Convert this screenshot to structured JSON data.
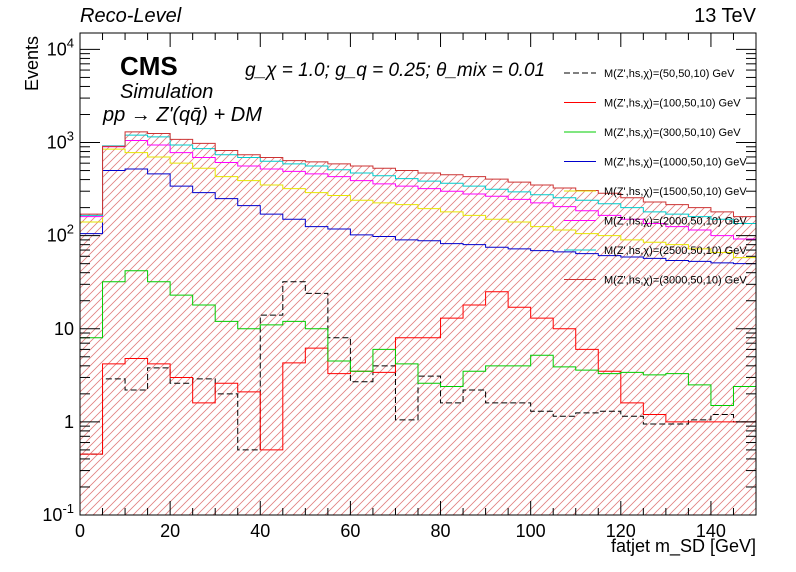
{
  "header": {
    "left": "Reco-Level",
    "right": "13 TeV"
  },
  "labels": {
    "cms": "CMS",
    "simulation": "Simulation",
    "process": "pp → Z'(qq̄) + DM",
    "couplings": "g_χ = 1.0; g_q = 0.25; θ_mix = 0.01"
  },
  "chart_data": {
    "type": "histogram",
    "xlabel": "fatjet m_SD [GeV]",
    "ylabel": "Events",
    "xlim": [
      0,
      150
    ],
    "ylim": [
      0.1,
      15000
    ],
    "yscale": "log",
    "x_ticks": [
      0,
      20,
      40,
      60,
      80,
      100,
      120,
      140
    ],
    "y_ticks": [
      {
        "value": 0.1,
        "label": "10^-1"
      },
      {
        "value": 1,
        "label": "1"
      },
      {
        "value": 10,
        "label": "10"
      },
      {
        "value": 100,
        "label": "10^2"
      },
      {
        "value": 1000,
        "label": "10^3"
      },
      {
        "value": 10000,
        "label": "10^4"
      }
    ],
    "bin_edges": [
      0,
      5,
      10,
      15,
      20,
      25,
      30,
      35,
      40,
      45,
      50,
      55,
      60,
      65,
      70,
      75,
      80,
      85,
      90,
      95,
      100,
      105,
      110,
      115,
      120,
      125,
      130,
      135,
      140,
      145,
      150
    ],
    "legend_position": "top-right",
    "series": [
      {
        "name": "M(Z',hs,χ)=(50,50,10) GeV",
        "color": "#000000",
        "dashed": true,
        "values": [
          0.45,
          2.9,
          2.2,
          3.8,
          2.6,
          2.9,
          2.0,
          0.5,
          14,
          32,
          24,
          8,
          2.7,
          4,
          1.05,
          3.1,
          1.6,
          2.2,
          1.6,
          1.6,
          1.3,
          1.15,
          1.25,
          1.3,
          1.15,
          0.95,
          0.95,
          1.05,
          1.2,
          1.0
        ]
      },
      {
        "name": "M(Z',hs,χ)=(100,50,10) GeV",
        "color": "#ff0000",
        "dashed": false,
        "values": [
          0.45,
          4.2,
          4.8,
          4.2,
          3.0,
          1.6,
          2.6,
          2.1,
          0.5,
          4.3,
          6.2,
          3.3,
          3.5,
          3.4,
          8,
          8,
          13,
          18,
          25,
          17,
          13,
          10,
          6,
          3.5,
          1.6,
          1.2,
          1.0,
          1.0,
          1.0,
          1.0
        ]
      },
      {
        "name": "M(Z',hs,χ)=(300,50,10) GeV",
        "color": "#00cc00",
        "dashed": false,
        "values": [
          8,
          32,
          42,
          32,
          23,
          18,
          12,
          10,
          11,
          12,
          10,
          4.5,
          3.5,
          6,
          4.2,
          2.6,
          2.4,
          3.5,
          4.0,
          4.0,
          5.2,
          3.9,
          3.6,
          3.3,
          3.4,
          3.2,
          3.3,
          2.5,
          1.5,
          2.4
        ]
      },
      {
        "name": "M(Z',hs,χ)=(1000,50,10) GeV",
        "color": "#0000cc",
        "dashed": false,
        "values": [
          105,
          500,
          520,
          460,
          340,
          290,
          250,
          210,
          170,
          150,
          125,
          118,
          102,
          98,
          90,
          88,
          82,
          80,
          75,
          72,
          69,
          67,
          64,
          61,
          59,
          57,
          54,
          53,
          51,
          50
        ]
      },
      {
        "name": "M(Z',hs,χ)=(1500,50,10) GeV",
        "color": "#e6e600",
        "dashed": false,
        "values": [
          140,
          850,
          780,
          700,
          600,
          530,
          430,
          390,
          350,
          320,
          290,
          270,
          240,
          225,
          215,
          195,
          180,
          165,
          150,
          140,
          125,
          115,
          105,
          100,
          90,
          85,
          80,
          72,
          66,
          58
        ]
      },
      {
        "name": "M(Z',hs,χ)=(2000,50,10) GeV",
        "color": "#ff00ff",
        "dashed": false,
        "values": [
          160,
          900,
          1050,
          940,
          780,
          690,
          610,
          560,
          520,
          490,
          460,
          430,
          390,
          360,
          340,
          320,
          300,
          280,
          265,
          245,
          225,
          205,
          185,
          165,
          150,
          135,
          125,
          115,
          100,
          92
        ]
      },
      {
        "name": "M(Z',hs,χ)=(2500,50,10) GeV",
        "color": "#00cccc",
        "dashed": false,
        "values": [
          165,
          920,
          1200,
          1150,
          940,
          860,
          740,
          690,
          630,
          590,
          560,
          510,
          470,
          440,
          410,
          385,
          365,
          340,
          315,
          295,
          275,
          255,
          240,
          220,
          200,
          180,
          170,
          160,
          150,
          135
        ]
      },
      {
        "name": "M(Z',hs,χ)=(3000,50,10) GeV",
        "color": "#cc3333",
        "dashed": false,
        "hatched": true,
        "values": [
          170,
          910,
          1300,
          1250,
          1080,
          980,
          820,
          740,
          690,
          640,
          620,
          590,
          560,
          530,
          500,
          470,
          450,
          430,
          405,
          375,
          350,
          325,
          305,
          285,
          255,
          230,
          215,
          200,
          180,
          160
        ]
      }
    ]
  }
}
